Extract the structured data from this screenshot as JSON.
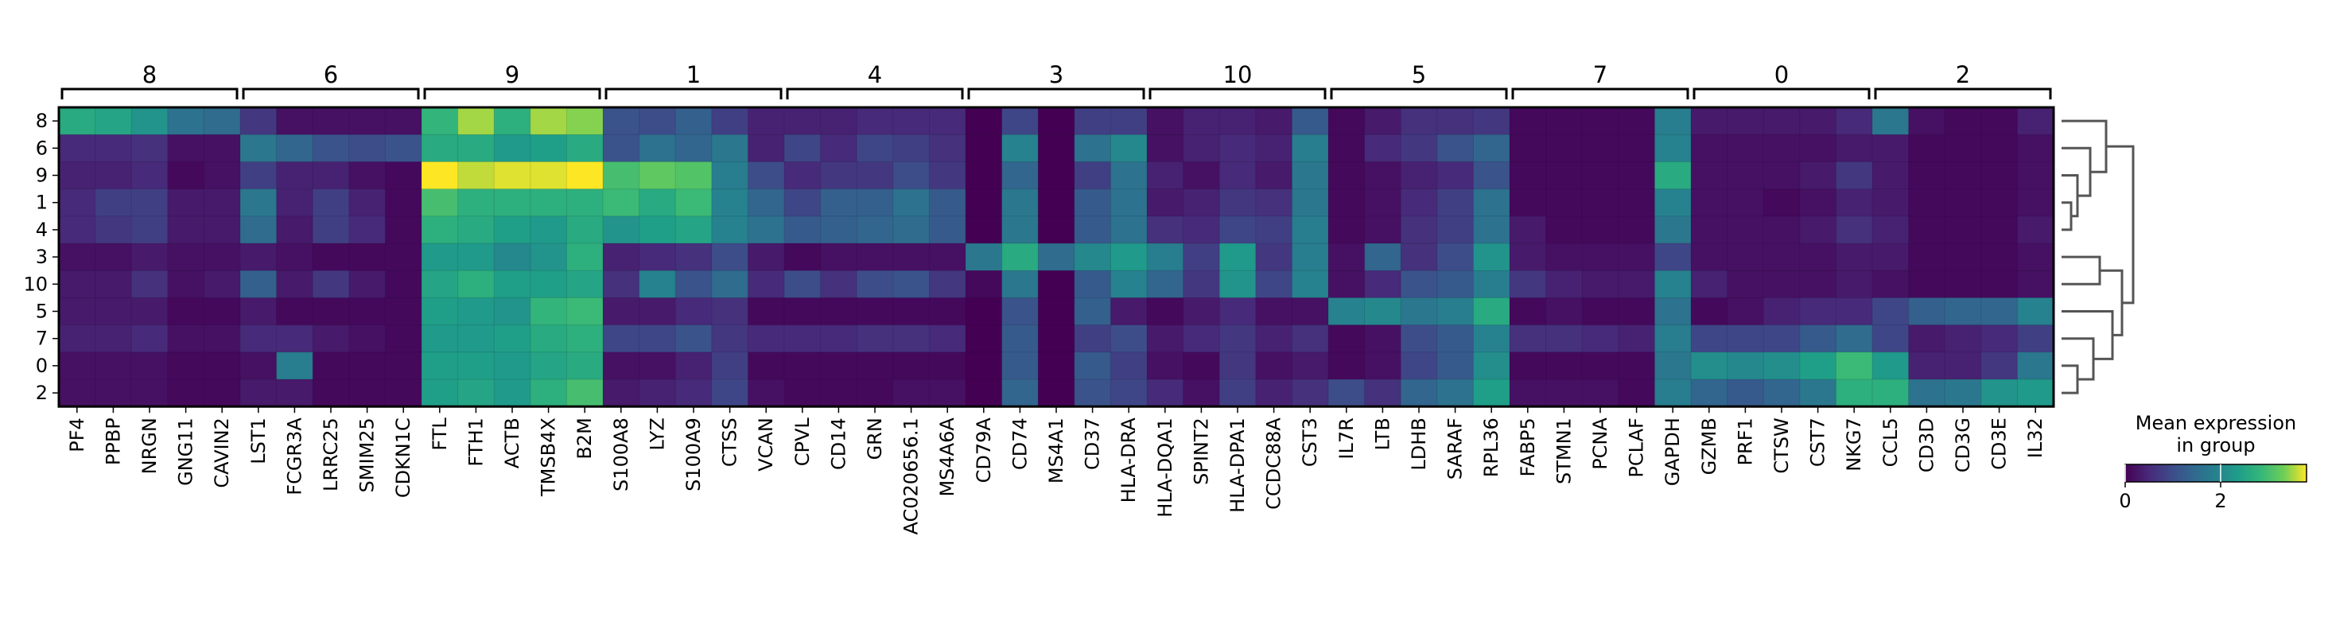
{
  "chart_data": {
    "type": "heatmap",
    "title": "",
    "xlabel": "",
    "ylabel": "",
    "rows": [
      "8",
      "6",
      "9",
      "1",
      "4",
      "3",
      "10",
      "5",
      "7",
      "0",
      "2"
    ],
    "group_labels": [
      "8",
      "6",
      "9",
      "1",
      "4",
      "3",
      "10",
      "5",
      "7",
      "0",
      "2"
    ],
    "genes": [
      "PF4",
      "PPBP",
      "NRGN",
      "GNG11",
      "CAVIN2",
      "LST1",
      "FCGR3A",
      "LRRC25",
      "SMIM25",
      "CDKN1C",
      "FTL",
      "FTH1",
      "ACTB",
      "TMSB4X",
      "B2M",
      "S100A8",
      "LYZ",
      "S100A9",
      "CTSS",
      "VCAN",
      "CPVL",
      "CD14",
      "GRN",
      "AC020656.1",
      "MS4A6A",
      "CD79A",
      "CD74",
      "MS4A1",
      "CD37",
      "HLA-DRA",
      "HLA-DQA1",
      "SPINT2",
      "HLA-DPA1",
      "CCDC88A",
      "CST3",
      "IL7R",
      "LTB",
      "LDHB",
      "SARAF",
      "RPL36",
      "FABP5",
      "STMN1",
      "PCNA",
      "PCLAF",
      "GAPDH",
      "GZMB",
      "PRF1",
      "CTSW",
      "CST7",
      "NKG7",
      "CCL5",
      "CD3D",
      "CD3G",
      "CD3E",
      "IL32"
    ],
    "values": [
      [
        2.6,
        2.5,
        2.2,
        1.6,
        1.5,
        0.7,
        0.2,
        0.2,
        0.2,
        0.2,
        2.8,
        3.5,
        2.7,
        3.5,
        3.4,
        1.1,
        1.0,
        1.3,
        0.8,
        0.4,
        0.4,
        0.4,
        0.5,
        0.5,
        0.5,
        0.0,
        0.9,
        0.0,
        0.8,
        0.8,
        0.2,
        0.4,
        0.4,
        0.3,
        1.2,
        0.1,
        0.3,
        0.6,
        0.6,
        0.7,
        0.1,
        0.1,
        0.1,
        0.1,
        1.8,
        0.3,
        0.3,
        0.3,
        0.3,
        0.5,
        1.7,
        0.2,
        0.1,
        0.1,
        0.4
      ],
      [
        0.5,
        0.5,
        0.6,
        0.2,
        0.2,
        1.7,
        1.4,
        1.1,
        1.0,
        1.1,
        2.6,
        2.6,
        2.3,
        2.4,
        2.6,
        1.1,
        1.6,
        1.4,
        1.7,
        0.4,
        0.9,
        0.5,
        0.9,
        0.8,
        0.6,
        0.0,
        1.9,
        0.0,
        1.6,
        2.0,
        0.2,
        0.4,
        0.5,
        0.4,
        1.8,
        0.1,
        0.5,
        0.7,
        1.1,
        1.4,
        0.1,
        0.1,
        0.1,
        0.1,
        1.9,
        0.2,
        0.2,
        0.2,
        0.2,
        0.3,
        0.3,
        0.1,
        0.1,
        0.1,
        0.2
      ],
      [
        0.4,
        0.4,
        0.5,
        0.1,
        0.2,
        0.8,
        0.4,
        0.4,
        0.2,
        0.1,
        3.8,
        3.6,
        3.7,
        3.7,
        3.8,
        3.0,
        3.2,
        3.1,
        1.8,
        1.0,
        0.5,
        0.7,
        0.7,
        1.0,
        0.7,
        0.0,
        1.4,
        0.0,
        0.8,
        1.6,
        0.4,
        0.2,
        0.5,
        0.3,
        1.7,
        0.1,
        0.2,
        0.4,
        0.5,
        1.1,
        0.1,
        0.1,
        0.1,
        0.1,
        2.6,
        0.2,
        0.2,
        0.2,
        0.3,
        0.7,
        0.3,
        0.1,
        0.1,
        0.1,
        0.2
      ],
      [
        0.5,
        0.8,
        0.8,
        0.3,
        0.3,
        1.7,
        0.4,
        0.8,
        0.4,
        0.1,
        3.0,
        2.7,
        2.7,
        2.7,
        2.7,
        2.9,
        2.6,
        2.9,
        1.9,
        1.4,
        0.9,
        1.3,
        1.3,
        1.6,
        1.2,
        0.0,
        1.7,
        0.0,
        1.2,
        1.6,
        0.3,
        0.4,
        0.7,
        0.6,
        1.7,
        0.1,
        0.2,
        0.5,
        0.8,
        1.6,
        0.1,
        0.1,
        0.1,
        0.1,
        1.9,
        0.2,
        0.2,
        0.1,
        0.2,
        0.4,
        0.3,
        0.1,
        0.1,
        0.1,
        0.2
      ],
      [
        0.5,
        0.7,
        0.8,
        0.3,
        0.3,
        1.5,
        0.3,
        0.8,
        0.5,
        0.1,
        2.7,
        2.6,
        2.4,
        2.3,
        2.6,
        2.2,
        2.4,
        2.5,
        1.9,
        1.6,
        1.2,
        1.3,
        1.4,
        1.5,
        1.2,
        0.0,
        1.7,
        0.0,
        1.2,
        1.6,
        0.6,
        0.5,
        0.9,
        0.8,
        1.8,
        0.1,
        0.2,
        0.6,
        0.8,
        1.6,
        0.3,
        0.1,
        0.1,
        0.1,
        1.7,
        0.2,
        0.2,
        0.2,
        0.3,
        0.6,
        0.4,
        0.1,
        0.1,
        0.1,
        0.3
      ],
      [
        0.2,
        0.2,
        0.3,
        0.2,
        0.2,
        0.3,
        0.2,
        0.1,
        0.1,
        0.1,
        2.3,
        2.3,
        2.0,
        2.2,
        2.7,
        0.4,
        0.5,
        0.6,
        1.0,
        0.3,
        0.1,
        0.2,
        0.2,
        0.2,
        0.2,
        1.7,
        2.6,
        1.5,
        2.0,
        2.3,
        1.8,
        0.8,
        2.3,
        0.7,
        1.8,
        0.2,
        1.4,
        0.6,
        1.0,
        2.2,
        0.3,
        0.2,
        0.2,
        0.2,
        0.9,
        0.2,
        0.2,
        0.2,
        0.2,
        0.3,
        0.3,
        0.1,
        0.1,
        0.1,
        0.2
      ],
      [
        0.3,
        0.3,
        0.6,
        0.2,
        0.3,
        1.3,
        0.3,
        0.7,
        0.3,
        0.1,
        2.5,
        2.7,
        2.4,
        2.4,
        2.5,
        0.6,
        1.9,
        1.1,
        1.5,
        0.5,
        1.0,
        0.6,
        1.0,
        1.1,
        0.7,
        0.1,
        1.7,
        0.0,
        1.2,
        1.9,
        1.4,
        0.7,
        2.2,
        0.9,
        1.9,
        0.2,
        0.5,
        1.1,
        1.2,
        1.8,
        0.7,
        0.4,
        0.3,
        0.3,
        1.9,
        0.4,
        0.2,
        0.2,
        0.2,
        0.3,
        0.2,
        0.1,
        0.1,
        0.1,
        0.2
      ],
      [
        0.3,
        0.3,
        0.3,
        0.1,
        0.1,
        0.3,
        0.1,
        0.1,
        0.1,
        0.1,
        2.4,
        2.3,
        2.2,
        2.8,
        2.9,
        0.3,
        0.3,
        0.5,
        0.6,
        0.1,
        0.1,
        0.1,
        0.1,
        0.1,
        0.1,
        0.0,
        1.1,
        0.0,
        1.3,
        0.3,
        0.1,
        0.3,
        0.5,
        0.2,
        0.2,
        1.9,
        2.0,
        1.7,
        1.8,
        2.6,
        0.1,
        0.2,
        0.1,
        0.1,
        1.6,
        0.1,
        0.2,
        0.4,
        0.5,
        0.5,
        0.9,
        1.3,
        1.4,
        1.4,
        1.9
      ],
      [
        0.4,
        0.4,
        0.5,
        0.2,
        0.2,
        0.5,
        0.5,
        0.3,
        0.2,
        0.1,
        2.3,
        2.3,
        2.4,
        2.6,
        2.7,
        0.9,
        0.9,
        1.1,
        0.7,
        0.5,
        0.5,
        0.5,
        0.6,
        0.6,
        0.5,
        0.0,
        1.2,
        0.0,
        0.8,
        1.0,
        0.3,
        0.5,
        0.7,
        0.4,
        0.6,
        0.1,
        0.2,
        1.0,
        1.2,
        1.9,
        0.6,
        0.6,
        0.5,
        0.4,
        1.8,
        0.9,
        0.9,
        0.9,
        1.2,
        1.5,
        0.9,
        0.3,
        0.4,
        0.5,
        0.8
      ],
      [
        0.2,
        0.2,
        0.2,
        0.1,
        0.1,
        0.2,
        1.8,
        0.1,
        0.1,
        0.1,
        2.4,
        2.4,
        2.3,
        2.5,
        2.6,
        0.2,
        0.2,
        0.4,
        0.8,
        0.1,
        0.1,
        0.1,
        0.1,
        0.1,
        0.1,
        0.0,
        1.2,
        0.0,
        1.2,
        0.8,
        0.2,
        0.1,
        0.7,
        0.2,
        0.3,
        0.1,
        0.2,
        0.9,
        1.2,
        2.1,
        0.1,
        0.1,
        0.1,
        0.1,
        1.7,
        2.1,
        2.0,
        2.1,
        2.4,
        2.9,
        2.3,
        0.4,
        0.4,
        0.7,
        1.7
      ],
      [
        0.2,
        0.2,
        0.2,
        0.1,
        0.1,
        0.3,
        0.3,
        0.1,
        0.1,
        0.1,
        2.4,
        2.5,
        2.3,
        2.7,
        3.0,
        0.3,
        0.4,
        0.5,
        0.9,
        0.2,
        0.1,
        0.1,
        0.1,
        0.2,
        0.2,
        0.0,
        1.4,
        0.0,
        1.1,
        0.9,
        0.5,
        0.2,
        0.8,
        0.4,
        0.6,
        1.0,
        0.6,
        1.4,
        1.6,
        2.4,
        0.2,
        0.2,
        0.2,
        0.1,
        1.8,
        1.4,
        1.2,
        1.4,
        1.7,
        2.7,
        2.7,
        1.6,
        1.7,
        2.2,
        2.3
      ]
    ],
    "colormap": "viridis",
    "colorbar": {
      "title_line1": "Mean expression",
      "title_line2": "in group",
      "ticks": [
        "0",
        "2"
      ],
      "vmin": 0,
      "vmax": 3.8
    },
    "dendrogram": "right"
  }
}
